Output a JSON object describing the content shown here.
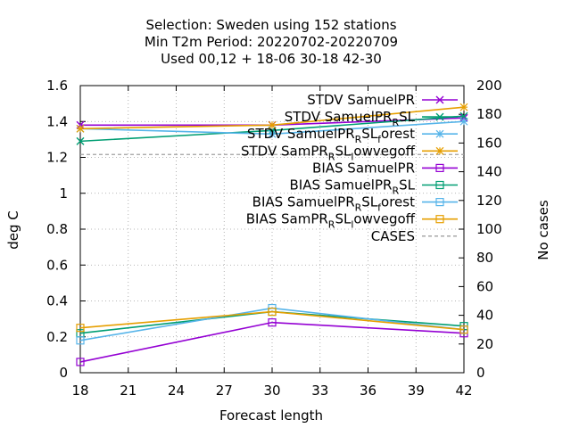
{
  "chart_data": {
    "type": "line",
    "title_lines": [
      "Selection: Sweden using    152 stations",
      "Min T2m    Period: 20220702-20220709",
      "Used  00,12  + 18-06 30-18 42-30"
    ],
    "xlabel": "Forecast length",
    "ylabel": "deg C",
    "y2label": "No cases",
    "x_ticks": [
      18,
      21,
      24,
      27,
      30,
      33,
      36,
      39,
      42
    ],
    "y_ticks": [
      "0",
      "0.2",
      "0.4",
      "0.6",
      "0.8",
      "1",
      "1.2",
      "1.4",
      "1.6"
    ],
    "y2_ticks": [
      "0",
      "20",
      "40",
      "60",
      "80",
      "100",
      "120",
      "140",
      "160",
      "180",
      "200"
    ],
    "xlim": [
      18,
      42
    ],
    "ylim": [
      0,
      1.6
    ],
    "y2lim": [
      0,
      200
    ],
    "grid": true,
    "legend_position": "top-right",
    "series": [
      {
        "name": "STDV SamuelPR",
        "x": [
          18,
          30,
          42
        ],
        "y": [
          1.38,
          1.38,
          1.42
        ],
        "color": "#9400d3",
        "marker": "x-cross",
        "dash": false
      },
      {
        "name": "STDV SamuelPR_RSL",
        "x": [
          18,
          30,
          42
        ],
        "y": [
          1.29,
          1.35,
          1.43
        ],
        "color": "#009e73",
        "marker": "x-cross",
        "dash": false
      },
      {
        "name": "STDV SamuelPR_RSL_forest",
        "x": [
          18,
          30,
          42
        ],
        "y": [
          1.36,
          1.33,
          1.4
        ],
        "color": "#56b4e9",
        "marker": "star",
        "dash": false
      },
      {
        "name": "STDV SamPR_RSL_lowvegoff",
        "x": [
          18,
          30,
          42
        ],
        "y": [
          1.36,
          1.38,
          1.48
        ],
        "color": "#e69f00",
        "marker": "star",
        "dash": false
      },
      {
        "name": "BIAS SamuelPR",
        "x": [
          18,
          30,
          42
        ],
        "y": [
          0.06,
          0.28,
          0.22
        ],
        "color": "#9400d3",
        "marker": "square",
        "dash": false
      },
      {
        "name": "BIAS SamuelPR_RSL",
        "x": [
          18,
          30,
          42
        ],
        "y": [
          0.22,
          0.34,
          0.26
        ],
        "color": "#009e73",
        "marker": "square",
        "dash": false
      },
      {
        "name": "BIAS SamuelPR_RSL_forest",
        "x": [
          18,
          30,
          42
        ],
        "y": [
          0.18,
          0.36,
          0.24
        ],
        "color": "#56b4e9",
        "marker": "square",
        "dash": false
      },
      {
        "name": "BIAS SamPR_RSL_lowvegoff",
        "x": [
          18,
          30,
          42
        ],
        "y": [
          0.25,
          0.34,
          0.24
        ],
        "color": "#e69f00",
        "marker": "square",
        "dash": false
      },
      {
        "name": "CASES",
        "x": [
          18,
          30,
          42
        ],
        "y2": [
          152,
          152,
          152
        ],
        "color": "#a0a0a0",
        "marker": "none",
        "dash": true
      }
    ],
    "legend": [
      {
        "label": "STDV SamuelPR",
        "base": "STDV SamuelPR",
        "sub": "",
        "tail": ""
      },
      {
        "label": "STDV SamuelPR_RSL",
        "base": "STDV SamuelPR",
        "sub": "R",
        "tail": "SL"
      },
      {
        "label": "STDV SamuelPR_RSL_forest",
        "base": "STDV SamuelPR",
        "sub": "R",
        "tail": "SL",
        "sub2": "f",
        "tail2": "orest"
      },
      {
        "label": "STDV SamPR_RSL_lowvegoff",
        "base": "STDV SamPR",
        "sub": "R",
        "tail": "SL",
        "sub2": "l",
        "tail2": "owvegoff"
      },
      {
        "label": "BIAS SamuelPR",
        "base": "BIAS SamuelPR",
        "sub": "",
        "tail": ""
      },
      {
        "label": "BIAS SamuelPR_RSL",
        "base": "BIAS SamuelPR",
        "sub": "R",
        "tail": "SL"
      },
      {
        "label": "BIAS SamuelPR_RSL_forest",
        "base": "BIAS SamuelPR",
        "sub": "R",
        "tail": "SL",
        "sub2": "f",
        "tail2": "orest"
      },
      {
        "label": "BIAS SamPR_RSL_lowvegoff",
        "base": "BIAS SamPR",
        "sub": "R",
        "tail": "SL",
        "sub2": "l",
        "tail2": "owvegoff"
      },
      {
        "label": "CASES",
        "base": "CASES",
        "sub": "",
        "tail": ""
      }
    ]
  }
}
